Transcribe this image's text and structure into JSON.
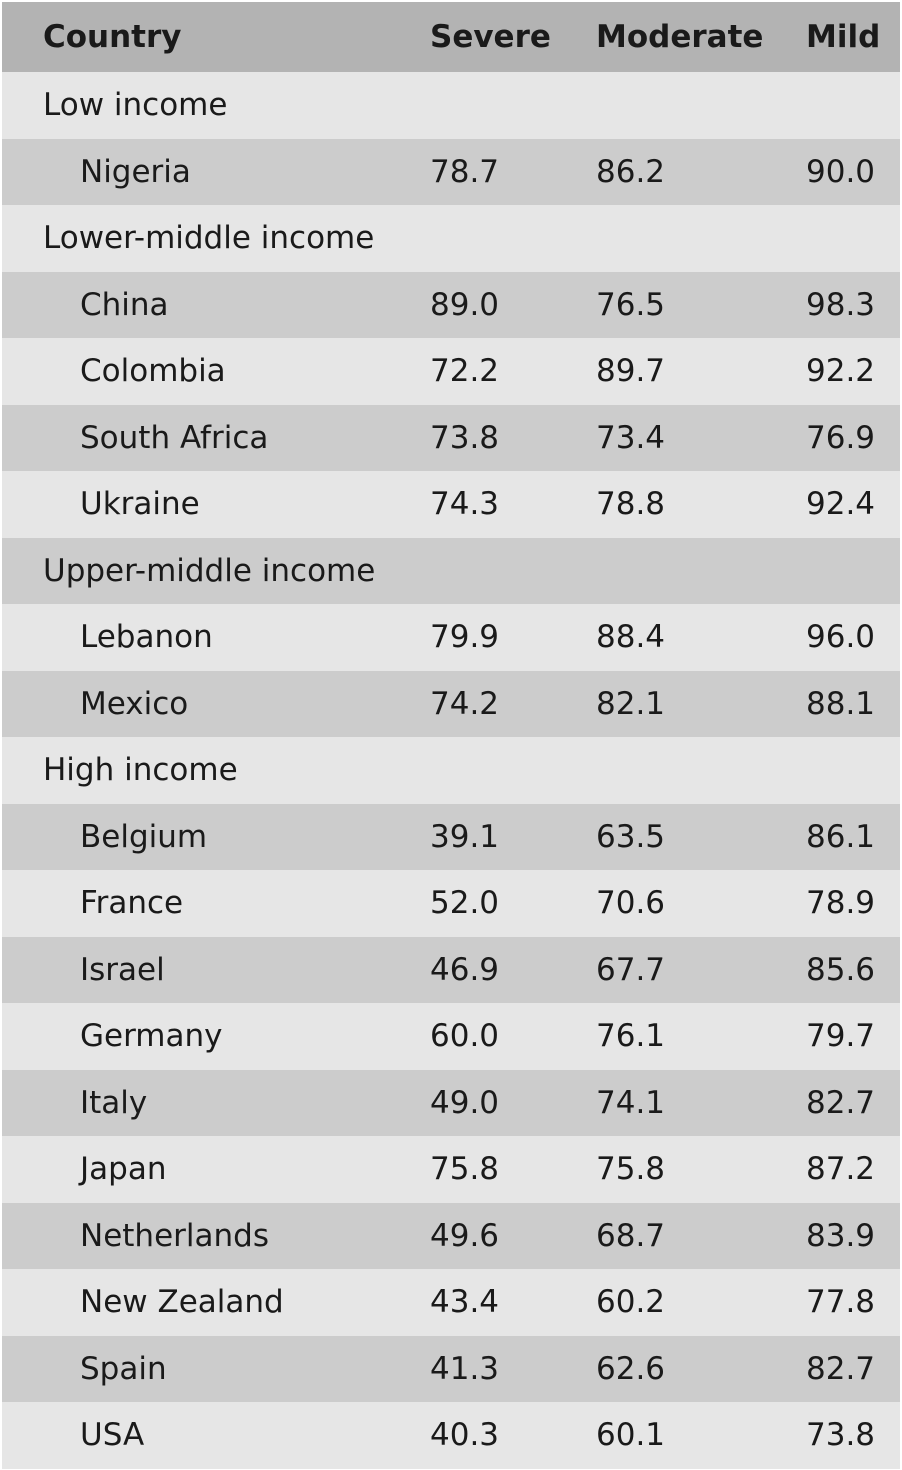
{
  "table": {
    "headers": [
      "Country",
      "Severe",
      "Moderate",
      "Mild"
    ],
    "rows": [
      {
        "type": "group",
        "label": "Low income"
      },
      {
        "type": "data",
        "country": "Nigeria",
        "severe": "78.7",
        "moderate": "86.2",
        "mild": "90.0"
      },
      {
        "type": "group",
        "label": "Lower-middle income"
      },
      {
        "type": "data",
        "country": "China",
        "severe": "89.0",
        "moderate": "76.5",
        "mild": "98.3"
      },
      {
        "type": "data",
        "country": "Colombia",
        "severe": "72.2",
        "moderate": "89.7",
        "mild": "92.2"
      },
      {
        "type": "data",
        "country": "South Africa",
        "severe": "73.8",
        "moderate": "73.4",
        "mild": "76.9"
      },
      {
        "type": "data",
        "country": "Ukraine",
        "severe": "74.3",
        "moderate": "78.8",
        "mild": "92.4"
      },
      {
        "type": "group",
        "label": "Upper-middle income"
      },
      {
        "type": "data",
        "country": "Lebanon",
        "severe": "79.9",
        "moderate": "88.4",
        "mild": "96.0"
      },
      {
        "type": "data",
        "country": "Mexico",
        "severe": "74.2",
        "moderate": "82.1",
        "mild": "88.1"
      },
      {
        "type": "group",
        "label": "High income"
      },
      {
        "type": "data",
        "country": "Belgium",
        "severe": "39.1",
        "moderate": "63.5",
        "mild": "86.1"
      },
      {
        "type": "data",
        "country": "France",
        "severe": "52.0",
        "moderate": "70.6",
        "mild": "78.9"
      },
      {
        "type": "data",
        "country": "Israel",
        "severe": "46.9",
        "moderate": "67.7",
        "mild": "85.6"
      },
      {
        "type": "data",
        "country": "Germany",
        "severe": "60.0",
        "moderate": "76.1",
        "mild": "79.7"
      },
      {
        "type": "data",
        "country": "Italy",
        "severe": "49.0",
        "moderate": "74.1",
        "mild": "82.7"
      },
      {
        "type": "data",
        "country": "Japan",
        "severe": "75.8",
        "moderate": "75.8",
        "mild": "87.2"
      },
      {
        "type": "data",
        "country": "Netherlands",
        "severe": "49.6",
        "moderate": "68.7",
        "mild": "83.9"
      },
      {
        "type": "data",
        "country": "New Zealand",
        "severe": "43.4",
        "moderate": "60.2",
        "mild": "77.8"
      },
      {
        "type": "data",
        "country": "Spain",
        "severe": "41.3",
        "moderate": "62.6",
        "mild": "82.7"
      },
      {
        "type": "data",
        "country": "USA",
        "severe": "40.3",
        "moderate": "60.1",
        "mild": "73.8"
      }
    ]
  }
}
